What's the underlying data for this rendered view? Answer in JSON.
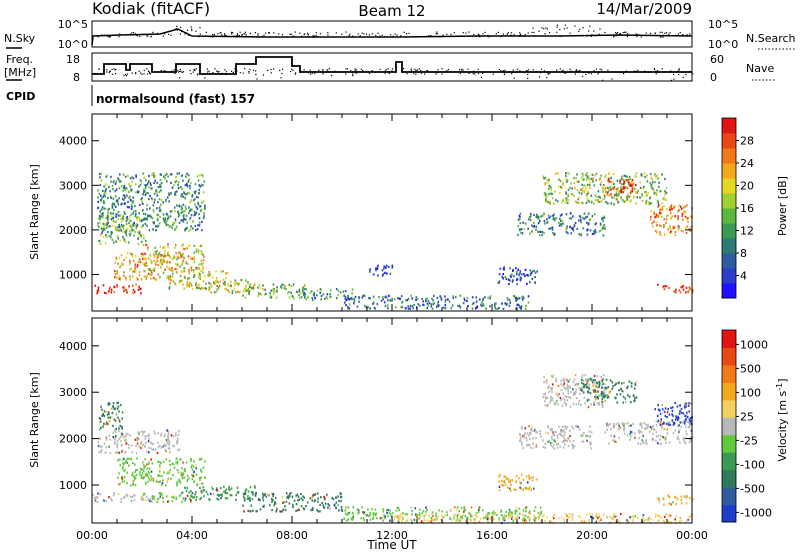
{
  "header": {
    "station": "Kodiak (fitACF)",
    "beam": "Beam 12",
    "date": "14/Mar/2009"
  },
  "strip": {
    "nsky_label": "N.Sky",
    "nsky_ticks": [
      "10^5",
      "10^0"
    ],
    "nsearch_label": "N.Search",
    "nsearch_ticks": [
      "10^5",
      "10^0"
    ],
    "freq_label_1": "Freq.",
    "freq_label_2": "[MHz]",
    "freq_ticks": [
      "18",
      "8"
    ],
    "nave_label": "Nave",
    "nave_ticks": [
      "60",
      "0"
    ],
    "cpid_label": "CPID",
    "cpid_text": "normalsound (fast) 157"
  },
  "chart_data": [
    {
      "type": "heatmap",
      "quantity": "Power",
      "ylabel": "Slant Range [km]",
      "ylim": [
        180,
        4600
      ],
      "yticks": [
        1000,
        2000,
        3000,
        4000
      ],
      "xlim": [
        0,
        24
      ],
      "colorbar": {
        "label": "Power [dB]",
        "ticks": [
          "4",
          "8",
          "12",
          "16",
          "20",
          "24",
          "28"
        ],
        "colors": [
          "#1f10ff",
          "#2b3cc8",
          "#2f5ca0",
          "#2f7a74",
          "#3a9a52",
          "#5cb83c",
          "#9fd230",
          "#e4d820",
          "#f5a81c",
          "#f07a18",
          "#e84814",
          "#e01410"
        ]
      },
      "regions": [
        {
          "t0": 0.0,
          "t1": 2.0,
          "r0": 600,
          "r1": 800,
          "level": 0.95
        },
        {
          "t0": 22.6,
          "t1": 24.0,
          "r0": 600,
          "r1": 800,
          "level": 0.95
        },
        {
          "t0": 0.2,
          "t1": 2.2,
          "r0": 1700,
          "r1": 2400,
          "level": 0.45
        },
        {
          "t0": 0.8,
          "t1": 3.2,
          "r0": 900,
          "r1": 1500,
          "level": 0.7
        },
        {
          "t0": 2.0,
          "t1": 4.5,
          "r0": 1100,
          "r1": 1700,
          "level": 0.65
        },
        {
          "t0": 3.0,
          "t1": 5.5,
          "r0": 700,
          "r1": 1100,
          "level": 0.6
        },
        {
          "t0": 4.5,
          "t1": 6.5,
          "r0": 600,
          "r1": 900,
          "level": 0.55
        },
        {
          "t0": 6.0,
          "t1": 8.5,
          "r0": 500,
          "r1": 800,
          "level": 0.5
        },
        {
          "t0": 8.0,
          "t1": 10.5,
          "r0": 450,
          "r1": 700,
          "level": 0.35
        },
        {
          "t0": 10.0,
          "t1": 17.5,
          "r0": 250,
          "r1": 550,
          "level": 0.25
        },
        {
          "t0": 0.2,
          "t1": 4.5,
          "r0": 2000,
          "r1": 3300,
          "level": 0.35
        },
        {
          "t0": 16.2,
          "t1": 17.8,
          "r0": 800,
          "r1": 1200,
          "level": 0.12
        },
        {
          "t0": 11.0,
          "t1": 12.0,
          "r0": 1000,
          "r1": 1250,
          "level": 0.1
        },
        {
          "t0": 17.0,
          "t1": 20.5,
          "r0": 1900,
          "r1": 2400,
          "level": 0.3
        },
        {
          "t0": 18.0,
          "t1": 23.0,
          "r0": 2600,
          "r1": 3300,
          "level": 0.5
        },
        {
          "t0": 20.5,
          "t1": 21.8,
          "r0": 2800,
          "r1": 3200,
          "level": 0.9
        },
        {
          "t0": 22.3,
          "t1": 24.0,
          "r0": 1900,
          "r1": 2600,
          "level": 0.8
        }
      ]
    },
    {
      "type": "heatmap",
      "quantity": "Velocity",
      "ylabel": "Slant Range [km]",
      "xlabel": "Time UT",
      "ylim": [
        180,
        4600
      ],
      "yticks": [
        1000,
        2000,
        3000,
        4000
      ],
      "xlim": [
        0,
        24
      ],
      "xticks": [
        "00:00",
        "04:00",
        "08:00",
        "12:00",
        "16:00",
        "20:00",
        "00:00"
      ],
      "colorbar": {
        "label": "Velocity [m s",
        "label_sup": "-1",
        "label_close": "]",
        "ticks": [
          "1000",
          "500",
          "100",
          "25",
          "-25",
          "-100",
          "-500",
          "-1000"
        ],
        "colors": [
          "#1f3cc8",
          "#2f5ca0",
          "#2f7a58",
          "#3a9a52",
          "#62c83c",
          "#b8b8b8",
          "#f5d060",
          "#f5a81c",
          "#f07a18",
          "#e84814",
          "#e01410"
        ]
      },
      "regions": [
        {
          "t0": 0.0,
          "t1": 2.5,
          "r0": 650,
          "r1": 850,
          "color": "#b8b8b8"
        },
        {
          "t0": 2.0,
          "t1": 4.0,
          "r0": 650,
          "r1": 850,
          "color": "#62c83c"
        },
        {
          "t0": 22.6,
          "t1": 24.0,
          "r0": 600,
          "r1": 800,
          "color": "#f5a81c"
        },
        {
          "t0": 0.2,
          "t1": 3.5,
          "r0": 1700,
          "r1": 2200,
          "color": "#b8b8b8"
        },
        {
          "t0": 0.2,
          "t1": 1.2,
          "r0": 2200,
          "r1": 2800,
          "color": "#2f7a58"
        },
        {
          "t0": 1.0,
          "t1": 4.5,
          "r0": 1000,
          "r1": 1600,
          "color": "#62c83c"
        },
        {
          "t0": 3.5,
          "t1": 6.5,
          "r0": 700,
          "r1": 1000,
          "color": "#3a9a52"
        },
        {
          "t0": 6.0,
          "t1": 10.0,
          "r0": 450,
          "r1": 850,
          "color": "#2f7a58"
        },
        {
          "t0": 10.0,
          "t1": 18.0,
          "r0": 250,
          "r1": 550,
          "color": "#62c83c"
        },
        {
          "t0": 12.0,
          "t1": 24.0,
          "r0": 200,
          "r1": 400,
          "color": "#f5d060"
        },
        {
          "t0": 16.2,
          "t1": 17.8,
          "r0": 900,
          "r1": 1250,
          "color": "#f5a81c"
        },
        {
          "t0": 17.0,
          "t1": 20.0,
          "r0": 1800,
          "r1": 2300,
          "color": "#b8b8b8"
        },
        {
          "t0": 18.0,
          "t1": 20.5,
          "r0": 2700,
          "r1": 3400,
          "color": "#b8b8b8"
        },
        {
          "t0": 19.5,
          "t1": 21.8,
          "r0": 2800,
          "r1": 3300,
          "color": "#2f7a58"
        },
        {
          "t0": 20.5,
          "t1": 24.0,
          "r0": 1900,
          "r1": 2400,
          "color": "#b8b8b8"
        },
        {
          "t0": 22.5,
          "t1": 24.0,
          "r0": 2300,
          "r1": 2800,
          "color": "#1f3cc8"
        }
      ]
    }
  ]
}
